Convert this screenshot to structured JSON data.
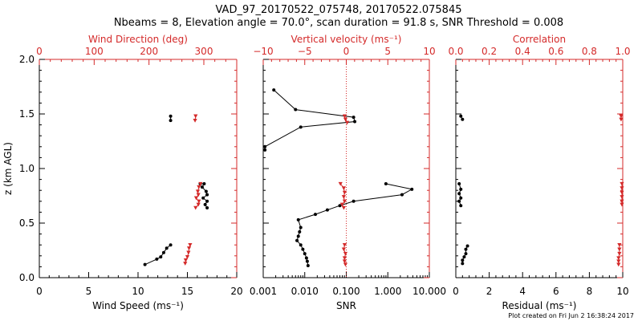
{
  "title": {
    "line1": "VAD_97_20170522_075748, 20170522.075845",
    "line2": "Nbeams = 8, Elevation angle = 70.0°, scan duration = 91.8 s, SNR Threshold = 0.008"
  },
  "footer": "Plot created on Fri Jun  2 16:38:24 2017",
  "colors": {
    "primary": "#000000",
    "secondary": "#d42a2a"
  },
  "chart_data": [
    {
      "type": "line",
      "panel": "wind",
      "ylabel": "z (km AGL)",
      "ylim": [
        0,
        2
      ],
      "yticks": [
        "0.0",
        "0.5",
        "1.0",
        "1.5",
        "2.0"
      ],
      "bottom_axis": {
        "label": "Wind Speed (ms⁻¹)",
        "range": [
          0,
          20
        ],
        "ticks": [
          "0",
          "5",
          "10",
          "15",
          "20"
        ]
      },
      "top_axis": {
        "label": "Wind Direction (deg)",
        "range": [
          0,
          360
        ],
        "ticks": [
          "0",
          "100",
          "200",
          "300"
        ]
      },
      "series": [
        {
          "axis": "bottom",
          "color": "#000000",
          "marker": "dot",
          "points": [
            [
              13.3,
              1.48
            ],
            [
              13.3,
              1.44
            ],
            [
              16.3,
              0.86
            ],
            [
              16.7,
              0.86
            ],
            [
              16.5,
              0.83
            ],
            [
              16.9,
              0.79
            ],
            [
              17.0,
              0.76
            ],
            [
              16.6,
              0.73
            ],
            [
              17.0,
              0.7
            ],
            [
              16.8,
              0.67
            ],
            [
              17.0,
              0.64
            ],
            [
              13.3,
              0.3
            ],
            [
              12.9,
              0.27
            ],
            [
              12.6,
              0.23
            ],
            [
              12.3,
              0.19
            ],
            [
              11.9,
              0.17
            ],
            [
              10.7,
              0.12
            ]
          ]
        },
        {
          "axis": "top",
          "color": "#d42a2a",
          "marker": "triangle",
          "points": [
            [
              285,
              1.48
            ],
            [
              284,
              1.44
            ],
            [
              294,
              0.86
            ],
            [
              291,
              0.83
            ],
            [
              289,
              0.79
            ],
            [
              290,
              0.76
            ],
            [
              286,
              0.73
            ],
            [
              291,
              0.7
            ],
            [
              290,
              0.67
            ],
            [
              285,
              0.64
            ],
            [
              275,
              0.3
            ],
            [
              273,
              0.27
            ],
            [
              272,
              0.23
            ],
            [
              270,
              0.19
            ],
            [
              267,
              0.16
            ],
            [
              266,
              0.13
            ]
          ]
        }
      ]
    },
    {
      "type": "line",
      "panel": "vertical",
      "ylim": [
        0,
        2
      ],
      "bottom_axis": {
        "label": "SNR",
        "scale": "log",
        "range": [
          0.001,
          10
        ],
        "ticks": [
          "0.001",
          "0.010",
          "0.100",
          "1.000",
          "10.000"
        ]
      },
      "top_axis": {
        "label": "Vertical velocity (ms⁻¹)",
        "range": [
          -10,
          10
        ],
        "ticks": [
          "−10",
          "−5",
          "0",
          "5",
          "10"
        ],
        "reference_line": 0
      },
      "series": [
        {
          "axis": "bottom",
          "color": "#000000",
          "marker": "dot",
          "points": [
            [
              0.0018,
              1.72
            ],
            [
              0.006,
              1.54
            ],
            [
              0.15,
              1.47
            ],
            [
              0.16,
              1.43
            ],
            [
              0.008,
              1.38
            ],
            [
              0.0011,
              1.2
            ],
            [
              0.0011,
              1.17
            ],
            [
              0.9,
              0.86
            ],
            [
              3.8,
              0.81
            ],
            [
              2.2,
              0.76
            ],
            [
              0.15,
              0.7
            ],
            [
              0.07,
              0.66
            ],
            [
              0.035,
              0.62
            ],
            [
              0.018,
              0.58
            ],
            [
              0.007,
              0.53
            ],
            [
              0.008,
              0.46
            ],
            [
              0.0075,
              0.42
            ],
            [
              0.007,
              0.38
            ],
            [
              0.0065,
              0.34
            ],
            [
              0.008,
              0.3
            ],
            [
              0.009,
              0.26
            ],
            [
              0.01,
              0.22
            ],
            [
              0.011,
              0.18
            ],
            [
              0.0115,
              0.15
            ],
            [
              0.012,
              0.11
            ]
          ]
        },
        {
          "axis": "top",
          "color": "#d42a2a",
          "marker": "triangle",
          "points": [
            [
              -0.2,
              1.48
            ],
            [
              -0.1,
              1.45
            ],
            [
              0.1,
              1.42
            ],
            [
              -0.7,
              0.86
            ],
            [
              -0.3,
              0.82
            ],
            [
              -0.2,
              0.78
            ],
            [
              -0.3,
              0.74
            ],
            [
              -0.2,
              0.7
            ],
            [
              -0.5,
              0.67
            ],
            [
              -0.3,
              0.64
            ],
            [
              -0.2,
              0.3
            ],
            [
              -0.3,
              0.26
            ],
            [
              -0.1,
              0.22
            ],
            [
              -0.2,
              0.18
            ],
            [
              -0.2,
              0.15
            ],
            [
              -0.1,
              0.12
            ]
          ]
        }
      ]
    },
    {
      "type": "scatter",
      "panel": "residual",
      "ylim": [
        0,
        2
      ],
      "bottom_axis": {
        "label": "Residual (ms⁻¹)",
        "range": [
          0,
          10
        ],
        "ticks": [
          "0",
          "2",
          "4",
          "6",
          "8",
          "10"
        ]
      },
      "top_axis": {
        "label": "Correlation",
        "range": [
          0,
          1
        ],
        "ticks": [
          "0.0",
          "0.2",
          "0.4",
          "0.6",
          "0.8",
          "1.0"
        ]
      },
      "series": [
        {
          "axis": "bottom",
          "color": "#000000",
          "marker": "dot",
          "points": [
            [
              0.3,
              1.48
            ],
            [
              0.4,
              1.45
            ],
            [
              0.2,
              0.86
            ],
            [
              0.3,
              0.81
            ],
            [
              0.2,
              0.77
            ],
            [
              0.3,
              0.73
            ],
            [
              0.2,
              0.7
            ],
            [
              0.3,
              0.66
            ],
            [
              0.7,
              0.29
            ],
            [
              0.6,
              0.26
            ],
            [
              0.6,
              0.22
            ],
            [
              0.5,
              0.19
            ],
            [
              0.4,
              0.16
            ],
            [
              0.4,
              0.13
            ]
          ]
        },
        {
          "axis": "top",
          "color": "#d42a2a",
          "marker": "triangle",
          "points": [
            [
              0.99,
              1.48
            ],
            [
              0.99,
              1.45
            ],
            [
              0.995,
              0.86
            ],
            [
              0.995,
              0.82
            ],
            [
              0.995,
              0.78
            ],
            [
              0.995,
              0.74
            ],
            [
              0.995,
              0.7
            ],
            [
              0.995,
              0.67
            ],
            [
              0.98,
              0.3
            ],
            [
              0.98,
              0.26
            ],
            [
              0.98,
              0.22
            ],
            [
              0.975,
              0.18
            ],
            [
              0.975,
              0.15
            ],
            [
              0.975,
              0.12
            ]
          ]
        }
      ]
    }
  ]
}
